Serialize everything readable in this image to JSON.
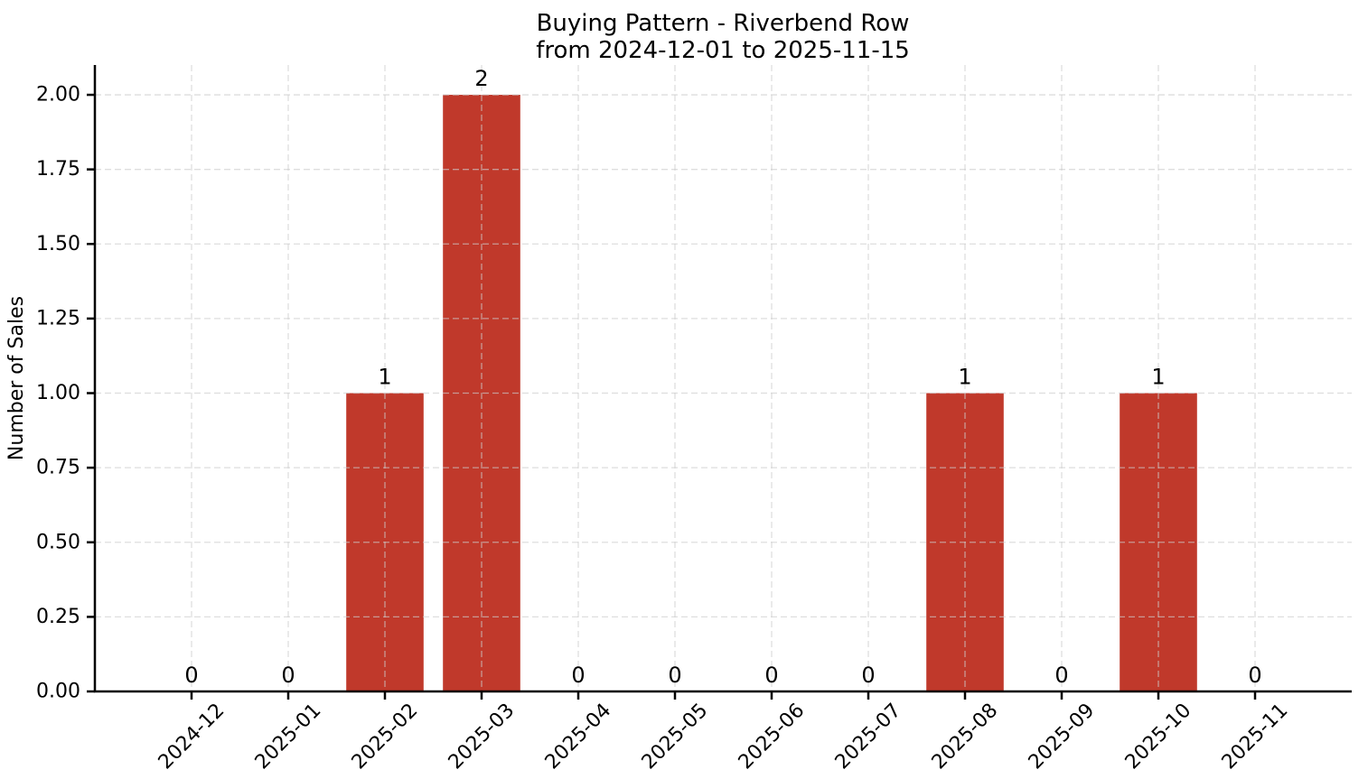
{
  "window": {
    "background_color": "#ffffff"
  },
  "chart_data": {
    "type": "bar",
    "title": "Buying Pattern - Riverbend Row",
    "subtitle": "from 2024-12-01 to 2025-11-15",
    "xlabel": "",
    "ylabel": "Number of Sales",
    "categories": [
      "2024-12",
      "2025-01",
      "2025-02",
      "2025-03",
      "2025-04",
      "2025-05",
      "2025-06",
      "2025-07",
      "2025-08",
      "2025-09",
      "2025-10",
      "2025-11"
    ],
    "values": [
      0,
      0,
      1,
      2,
      0,
      0,
      0,
      0,
      1,
      0,
      1,
      0
    ],
    "bar_value_labels": [
      "0",
      "0",
      "1",
      "2",
      "0",
      "0",
      "0",
      "0",
      "1",
      "0",
      "1",
      "0"
    ],
    "yticks": [
      0.0,
      0.25,
      0.5,
      0.75,
      1.0,
      1.25,
      1.5,
      1.75,
      2.0
    ],
    "ytick_labels": [
      "0.00",
      "0.25",
      "0.50",
      "0.75",
      "1.00",
      "1.25",
      "1.50",
      "1.75",
      "2.00"
    ],
    "ylim": [
      0,
      2.1
    ],
    "x_tick_rotation_deg": 45,
    "bar_color": "#c0392b",
    "bar_width_fraction": 0.8,
    "grid": {
      "visible": true,
      "style": "dashed",
      "color": "#cccccc",
      "drawn_over_bars": true
    },
    "legend_position": "none",
    "axis_color": "#000000",
    "text_color": "#000000"
  }
}
